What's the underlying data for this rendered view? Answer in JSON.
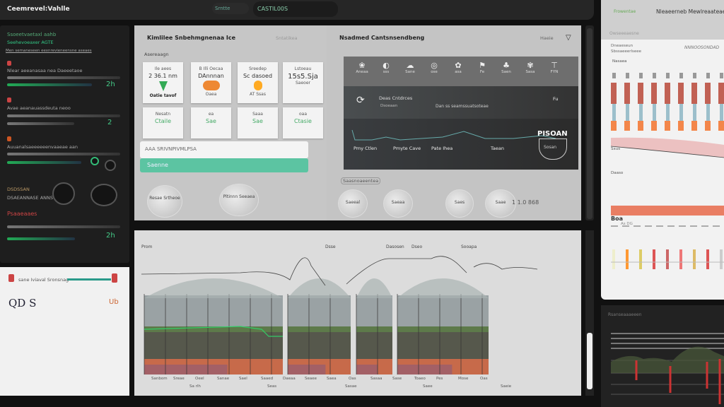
{
  "topbar": {
    "title": "Ceemrevel:Vahlle",
    "pill1": "Srntte",
    "pill2": "CASTIL00S"
  },
  "left": {
    "header": "Ssoeetvaetaxl aahb",
    "subheader": "Seehevoeaxer AGTE",
    "desc": "Men semaneseen eexnrevieneensne aseaes",
    "items": [
      {
        "label": "Nlear aeeanasaa nea Daeeetaoe",
        "value": "2h"
      },
      {
        "label": "Avae aeanauassdeuta neoo",
        "value": "2"
      },
      {
        "label": "Auuanalsaeeeeeenvaaeae aan",
        "value": "0"
      },
      {
        "label": "Psaaeaaes",
        "value": "2h"
      }
    ],
    "stat_title": "DSDSSAN",
    "stat_sub": "DSAEANNASE ANNS",
    "light_label": "sane Iviaval Sronsnag",
    "light_value": "QD S",
    "light_badge": "Ub"
  },
  "panelA": {
    "title": "Kimlilee Snbehmgnenaa Ice",
    "subtitle": "Asereaagn",
    "toolbar": "Sntatikea",
    "cards": [
      {
        "top": "Ile aees",
        "value": "2 36.1 nm",
        "bottom": "Oatie tavof"
      },
      {
        "top": "B Illi Oecaa",
        "value": "DAnnnan",
        "bottom": "Oaea"
      },
      {
        "top": "Sreedep",
        "value": "Sc dasoed",
        "bottom": "AT Ssas"
      },
      {
        "top": "Lstoeau",
        "value": "15s5.Sja",
        "bottom": "Saeoer"
      },
      {
        "top": "Nesatn",
        "value": "Ctaile"
      },
      {
        "top": "ea",
        "value": "Sae"
      },
      {
        "top": "Saaa",
        "value": "Sae"
      },
      {
        "top": "oaa",
        "value": "Ctasie"
      }
    ],
    "input1": "AAA SRIVNPIVMLPSA",
    "button": "Saenne",
    "bubbles": [
      "Resae Srtheoe",
      "Pltinnn Seeaea"
    ]
  },
  "panelB": {
    "title": "Nsadmed Cantsnsendbeng",
    "toolbar": "Haeie",
    "icons": [
      "Aneaa",
      "sss",
      "Sane",
      "ose",
      "asa",
      "Fe",
      "Saen",
      "Sasa",
      "FYN"
    ],
    "row2": {
      "title": "Deas Cntdrces",
      "sub": "Dsoeaan",
      "mid": "Dan ss seamssuatsoteae",
      "right": "Fu"
    },
    "row3": {
      "labels": [
        "Pmy Ctlen",
        "Pmyte Cave",
        "Pate Ihea",
        "Taean"
      ],
      "big": "PISOAN",
      "note": "Sosan"
    },
    "sectionLabel": "Saasnoaeentea",
    "bubbles": [
      "Saeeal",
      "Saeaa",
      "Saes",
      "Saae",
      "Saee"
    ],
    "bubble_value": "1 1.0 868"
  },
  "chart": {
    "labels": [
      "Prom",
      "Dsse",
      "Dasosen",
      "Dseo",
      "Sooapa"
    ],
    "xlabels": [
      "Sanbom",
      "Sreae",
      "Oeel",
      "Sanae",
      "Sael",
      "Saaed",
      "Daeaa",
      "Seaee",
      "Saea",
      "Oas",
      "Sasaa",
      "Sase",
      "Toaeo",
      "Pes",
      "Mose",
      "Oas"
    ],
    "subx": [
      "Sa rlh",
      "Seas",
      "Sasae",
      "Saee",
      "Saeie"
    ]
  },
  "right": {
    "brand": "Frowentae",
    "title": "Nleaeerneb Mewlreaateae",
    "filter": "Owseeeaesne",
    "sub1": "Dneaeseun",
    "sub2": "Sbssaeeerlseee",
    "search": "NNNOOSONDAD",
    "col": "Nasaea",
    "label2": "Sxus",
    "label3": "Daaso",
    "label4": "Boa",
    "label5": "As DG",
    "dark_title": "Rsanseaaaeeen"
  }
}
